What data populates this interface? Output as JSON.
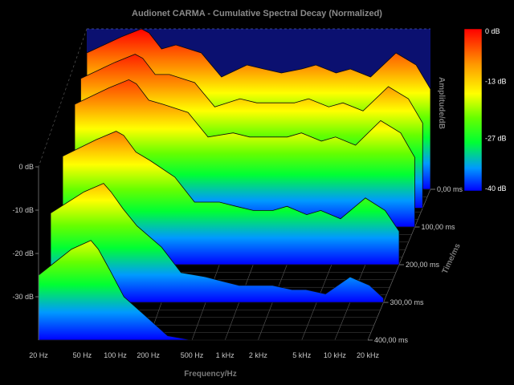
{
  "chart_data": {
    "type": "waterfall-3d",
    "title": "Audionet CARMA - Cumulative Spectral Decay (Normalized)",
    "xlabel": "Frequency/Hz",
    "ylabel": "Amplitude/dB",
    "zlabel": "Time/ms",
    "x_scale": "log",
    "xlim_hz": [
      20,
      20000
    ],
    "x_ticks": [
      "20 Hz",
      "50 Hz",
      "100 Hz",
      "200 Hz",
      "500 Hz",
      "1 kHz",
      "2 kHz",
      "5 kHz",
      "10 kHz",
      "20 kHz"
    ],
    "x_tick_values": [
      20,
      50,
      100,
      200,
      500,
      1000,
      2000,
      5000,
      10000,
      20000
    ],
    "amplitude_ticks": [
      "0 dB",
      "-10 dB",
      "-20 dB",
      "-30 dB"
    ],
    "amplitude_tick_values": [
      0,
      -10,
      -20,
      -30
    ],
    "ylim_db": [
      -40,
      0
    ],
    "time_ticks": [
      "0,00 ms",
      "100,00 ms",
      "200,00 ms",
      "300,00 ms",
      "400,00 ms"
    ],
    "time_tick_values": [
      0,
      100,
      200,
      300,
      400
    ],
    "colorbar": {
      "labels": [
        "0 dB",
        "-13 dB",
        "-27 dB",
        "-40 dB"
      ],
      "values": [
        0,
        -13,
        -27,
        -40
      ],
      "colors": [
        "#ff0000",
        "#ffff00",
        "#00ff00",
        "#0000ff"
      ]
    },
    "grid": true,
    "series": [
      {
        "time_ms": 0,
        "freq_hz": [
          20,
          40,
          60,
          70,
          90,
          120,
          200,
          300,
          500,
          700,
          1000,
          1500,
          2000,
          3000,
          4000,
          6000,
          10000,
          15000,
          20000
        ],
        "db": [
          -6,
          -2,
          0,
          -1,
          -5,
          -4,
          -6,
          -12,
          -9,
          -10,
          -11,
          -10,
          -9,
          -11,
          -10,
          -12,
          -6,
          -9,
          -15
        ]
      },
      {
        "time_ms": 50,
        "freq_hz": [
          20,
          40,
          60,
          70,
          90,
          120,
          200,
          300,
          500,
          700,
          1000,
          1500,
          2000,
          3000,
          4000,
          6000,
          10000,
          15000,
          20000
        ],
        "db": [
          -8,
          -4,
          -2,
          -3,
          -7,
          -7,
          -9,
          -15,
          -13,
          -14,
          -14,
          -14,
          -13,
          -15,
          -14,
          -16,
          -10,
          -13,
          -19
        ]
      },
      {
        "time_ms": 100,
        "freq_hz": [
          20,
          40,
          60,
          70,
          90,
          120,
          200,
          300,
          500,
          700,
          1000,
          1500,
          2000,
          3000,
          4000,
          6000,
          10000,
          15000,
          20000
        ],
        "db": [
          -10,
          -6,
          -4,
          -5,
          -9,
          -10,
          -12,
          -18,
          -17,
          -18,
          -18,
          -18,
          -17,
          -19,
          -18,
          -20,
          -14,
          -17,
          -23
        ]
      },
      {
        "time_ms": 200,
        "freq_hz": [
          20,
          40,
          60,
          70,
          90,
          120,
          200,
          300,
          500,
          700,
          1000,
          1500,
          2000,
          3000,
          4000,
          6000,
          10000,
          15000,
          20000
        ],
        "db": [
          -14,
          -10,
          -8,
          -9,
          -13,
          -15,
          -19,
          -25,
          -25,
          -26,
          -27,
          -27,
          -26,
          -28,
          -27,
          -29,
          -24,
          -27,
          -32
        ]
      },
      {
        "time_ms": 300,
        "freq_hz": [
          20,
          40,
          60,
          70,
          90,
          120,
          200,
          300,
          500,
          700,
          1000,
          1500,
          2000,
          3000,
          4000,
          6000,
          10000,
          15000,
          20000
        ],
        "db": [
          -19,
          -14,
          -12,
          -14,
          -18,
          -22,
          -27,
          -33,
          -34,
          -35,
          -36,
          -36,
          -36,
          -37,
          -37,
          -38,
          -34,
          -36,
          -39
        ]
      },
      {
        "time_ms": 400,
        "freq_hz": [
          20,
          40,
          60,
          70,
          90,
          120,
          200,
          300,
          500,
          700,
          1000,
          1500,
          2000,
          3000,
          4000,
          6000,
          10000,
          15000,
          20000
        ],
        "db": [
          -25,
          -19,
          -17,
          -19,
          -24,
          -30,
          -35,
          -39,
          -40,
          -40,
          -40,
          -40,
          -40,
          -40,
          -40,
          -40,
          -40,
          -40,
          -40
        ]
      }
    ]
  }
}
